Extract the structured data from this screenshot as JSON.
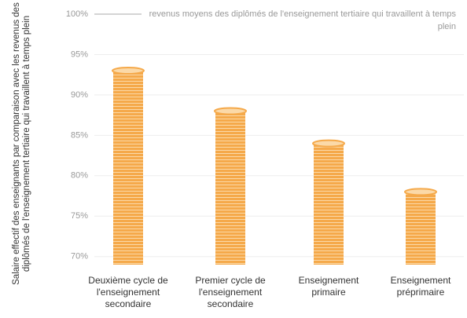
{
  "chart_data": {
    "type": "bar",
    "y_label": "Salaire effectif des enseignants par comparaison avec les revenus des diplômés de l'enseignement tertiaire qui travaillent à temps plein",
    "annotation": "revenus moyens des diplômés de l'enseignement tertiaire qui travaillent à temps plein",
    "categories": [
      "Deuxième cycle de l'enseignement secondaire",
      "Premier cycle de l'enseignement secondaire",
      "Enseignement primaire",
      "Enseignement préprimaire"
    ],
    "values": [
      93,
      88,
      84,
      78
    ],
    "color": "#f5a94a",
    "ylim": [
      69,
      100
    ],
    "yticks": [
      {
        "value": 70,
        "label": "70%"
      },
      {
        "value": 75,
        "label": "75%"
      },
      {
        "value": 80,
        "label": "80%"
      },
      {
        "value": 85,
        "label": "85%"
      },
      {
        "value": 90,
        "label": "90%"
      },
      {
        "value": 95,
        "label": "95%"
      },
      {
        "value": 100,
        "label": "100%"
      }
    ],
    "grid": true
  }
}
